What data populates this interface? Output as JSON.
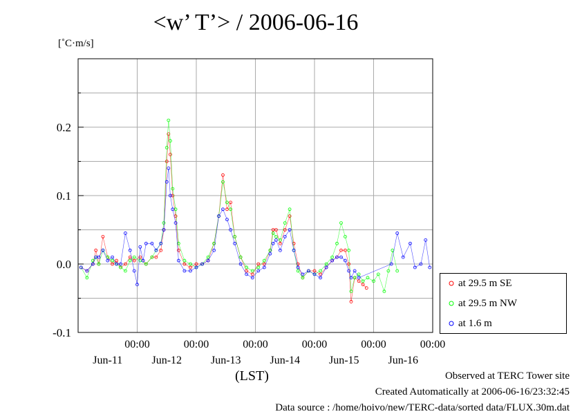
{
  "chart_data": {
    "type": "scatter",
    "title": "<w’ T’> / 2006-06-16",
    "ylabel": "[˚C·m/s]",
    "xlabel": "(LST)",
    "ylim": [
      -0.1,
      0.3
    ],
    "xlim": [
      0,
      6
    ],
    "grid": true,
    "legend_position": "right",
    "y_ticks": [
      {
        "value": 0.2,
        "label": "0.2"
      },
      {
        "value": 0.1,
        "label": "0.1"
      },
      {
        "value": 0.0,
        "label": "0.0"
      },
      {
        "value": -0.1,
        "label": "-0.1"
      }
    ],
    "x_ticks": [
      {
        "value": 1,
        "time": "00:00",
        "date": "Jun-11"
      },
      {
        "value": 2,
        "time": "00:00",
        "date": "Jun-12"
      },
      {
        "value": 3,
        "time": "00:00",
        "date": "Jun-13"
      },
      {
        "value": 4,
        "time": "00:00",
        "date": "Jun-14"
      },
      {
        "value": 5,
        "time": "00:00",
        "date": "Jun-15"
      },
      {
        "value": 6,
        "time": "00:00",
        "date": "Jun-16"
      }
    ],
    "series": [
      {
        "name": "at 29.5 m SE",
        "color": "#ff0000",
        "marker": "circle",
        "points": [
          [
            0.05,
            -0.005
          ],
          [
            0.15,
            -0.01
          ],
          [
            0.25,
            0.0
          ],
          [
            0.3,
            0.02
          ],
          [
            0.35,
            0.0
          ],
          [
            0.42,
            0.04
          ],
          [
            0.5,
            0.01
          ],
          [
            0.58,
            0.0
          ],
          [
            0.65,
            0.005
          ],
          [
            0.72,
            -0.005
          ],
          [
            0.8,
            0.0
          ],
          [
            0.88,
            0.01
          ],
          [
            0.95,
            0.005
          ],
          [
            1.05,
            0.01
          ],
          [
            1.15,
            0.0
          ],
          [
            1.25,
            0.01
          ],
          [
            1.32,
            0.01
          ],
          [
            1.4,
            0.02
          ],
          [
            1.45,
            0.05
          ],
          [
            1.5,
            0.15
          ],
          [
            1.53,
            0.19
          ],
          [
            1.56,
            0.16
          ],
          [
            1.6,
            0.1
          ],
          [
            1.65,
            0.07
          ],
          [
            1.7,
            0.02
          ],
          [
            1.8,
            0.0
          ],
          [
            1.9,
            -0.005
          ],
          [
            2.0,
            0.0
          ],
          [
            2.1,
            0.0
          ],
          [
            2.2,
            0.005
          ],
          [
            2.3,
            0.03
          ],
          [
            2.38,
            0.07
          ],
          [
            2.45,
            0.13
          ],
          [
            2.52,
            0.08
          ],
          [
            2.58,
            0.09
          ],
          [
            2.65,
            0.04
          ],
          [
            2.75,
            0.01
          ],
          [
            2.85,
            -0.01
          ],
          [
            2.95,
            -0.015
          ],
          [
            3.05,
            0.0
          ],
          [
            3.15,
            0.0
          ],
          [
            3.25,
            0.02
          ],
          [
            3.3,
            0.05
          ],
          [
            3.35,
            0.05
          ],
          [
            3.42,
            0.03
          ],
          [
            3.5,
            0.05
          ],
          [
            3.58,
            0.07
          ],
          [
            3.65,
            0.03
          ],
          [
            3.72,
            0.0
          ],
          [
            3.8,
            -0.02
          ],
          [
            3.9,
            -0.01
          ],
          [
            4.0,
            -0.01
          ],
          [
            4.1,
            -0.015
          ],
          [
            4.2,
            -0.005
          ],
          [
            4.3,
            0.005
          ],
          [
            4.38,
            0.01
          ],
          [
            4.45,
            0.02
          ],
          [
            4.52,
            0.02
          ],
          [
            4.58,
            0.0
          ],
          [
            4.62,
            -0.055
          ],
          [
            4.68,
            -0.02
          ],
          [
            4.75,
            -0.025
          ],
          [
            4.82,
            -0.03
          ],
          [
            4.88,
            -0.035
          ]
        ]
      },
      {
        "name": "at 29.5 m NW",
        "color": "#00ff00",
        "marker": "circle",
        "points": [
          [
            0.05,
            -0.005
          ],
          [
            0.15,
            -0.02
          ],
          [
            0.25,
            0.005
          ],
          [
            0.3,
            0.01
          ],
          [
            0.35,
            0.0
          ],
          [
            0.42,
            0.02
          ],
          [
            0.5,
            0.01
          ],
          [
            0.58,
            0.005
          ],
          [
            0.65,
            0.0
          ],
          [
            0.72,
            -0.005
          ],
          [
            0.8,
            -0.01
          ],
          [
            0.88,
            0.005
          ],
          [
            0.95,
            0.01
          ],
          [
            1.05,
            0.005
          ],
          [
            1.15,
            0.0
          ],
          [
            1.25,
            0.01
          ],
          [
            1.32,
            0.02
          ],
          [
            1.4,
            0.03
          ],
          [
            1.45,
            0.06
          ],
          [
            1.5,
            0.17
          ],
          [
            1.53,
            0.21
          ],
          [
            1.56,
            0.18
          ],
          [
            1.6,
            0.11
          ],
          [
            1.65,
            0.08
          ],
          [
            1.7,
            0.03
          ],
          [
            1.8,
            0.005
          ],
          [
            1.9,
            0.0
          ],
          [
            2.0,
            -0.005
          ],
          [
            2.1,
            0.0
          ],
          [
            2.2,
            0.01
          ],
          [
            2.3,
            0.03
          ],
          [
            2.38,
            0.07
          ],
          [
            2.45,
            0.12
          ],
          [
            2.52,
            0.09
          ],
          [
            2.58,
            0.08
          ],
          [
            2.65,
            0.04
          ],
          [
            2.75,
            0.01
          ],
          [
            2.85,
            -0.005
          ],
          [
            2.95,
            -0.01
          ],
          [
            3.05,
            -0.005
          ],
          [
            3.15,
            0.005
          ],
          [
            3.25,
            0.02
          ],
          [
            3.3,
            0.045
          ],
          [
            3.35,
            0.04
          ],
          [
            3.42,
            0.035
          ],
          [
            3.5,
            0.06
          ],
          [
            3.58,
            0.08
          ],
          [
            3.65,
            0.02
          ],
          [
            3.72,
            -0.01
          ],
          [
            3.8,
            -0.02
          ],
          [
            3.9,
            -0.01
          ],
          [
            4.0,
            -0.015
          ],
          [
            4.1,
            -0.01
          ],
          [
            4.2,
            0.0
          ],
          [
            4.3,
            0.01
          ],
          [
            4.38,
            0.03
          ],
          [
            4.45,
            0.06
          ],
          [
            4.52,
            0.04
          ],
          [
            4.58,
            0.02
          ],
          [
            4.62,
            -0.04
          ],
          [
            4.68,
            -0.02
          ],
          [
            4.75,
            -0.015
          ],
          [
            4.82,
            -0.025
          ],
          [
            4.9,
            -0.02
          ],
          [
            5.0,
            -0.025
          ],
          [
            5.08,
            -0.015
          ],
          [
            5.18,
            -0.04
          ],
          [
            5.25,
            -0.01
          ],
          [
            5.32,
            0.02
          ],
          [
            5.4,
            -0.01
          ]
        ]
      },
      {
        "name": "at 1.6 m",
        "color": "#0000ff",
        "marker": "circle",
        "points": [
          [
            0.05,
            -0.005
          ],
          [
            0.15,
            -0.01
          ],
          [
            0.25,
            0.0
          ],
          [
            0.3,
            0.01
          ],
          [
            0.35,
            0.01
          ],
          [
            0.42,
            0.02
          ],
          [
            0.5,
            0.005
          ],
          [
            0.58,
            0.01
          ],
          [
            0.65,
            0.0
          ],
          [
            0.72,
            0.0
          ],
          [
            0.8,
            0.045
          ],
          [
            0.88,
            0.02
          ],
          [
            0.95,
            -0.01
          ],
          [
            1.0,
            -0.03
          ],
          [
            1.05,
            0.025
          ],
          [
            1.1,
            0.005
          ],
          [
            1.15,
            0.03
          ],
          [
            1.25,
            0.03
          ],
          [
            1.32,
            0.02
          ],
          [
            1.4,
            0.03
          ],
          [
            1.45,
            0.05
          ],
          [
            1.5,
            0.12
          ],
          [
            1.53,
            0.14
          ],
          [
            1.56,
            0.1
          ],
          [
            1.6,
            0.08
          ],
          [
            1.65,
            0.06
          ],
          [
            1.7,
            0.005
          ],
          [
            1.8,
            -0.01
          ],
          [
            1.9,
            -0.01
          ],
          [
            2.0,
            -0.005
          ],
          [
            2.1,
            0.0
          ],
          [
            2.2,
            0.005
          ],
          [
            2.3,
            0.02
          ],
          [
            2.38,
            0.07
          ],
          [
            2.45,
            0.08
          ],
          [
            2.52,
            0.065
          ],
          [
            2.58,
            0.05
          ],
          [
            2.65,
            0.03
          ],
          [
            2.75,
            0.0
          ],
          [
            2.85,
            -0.015
          ],
          [
            2.95,
            -0.02
          ],
          [
            3.05,
            -0.01
          ],
          [
            3.15,
            -0.005
          ],
          [
            3.25,
            0.015
          ],
          [
            3.3,
            0.03
          ],
          [
            3.35,
            0.035
          ],
          [
            3.42,
            0.02
          ],
          [
            3.5,
            0.04
          ],
          [
            3.58,
            0.05
          ],
          [
            3.65,
            0.02
          ],
          [
            3.72,
            -0.005
          ],
          [
            3.8,
            -0.015
          ],
          [
            3.9,
            -0.01
          ],
          [
            4.0,
            -0.015
          ],
          [
            4.1,
            -0.02
          ],
          [
            4.2,
            -0.005
          ],
          [
            4.3,
            0.005
          ],
          [
            4.38,
            0.01
          ],
          [
            4.45,
            0.01
          ],
          [
            4.52,
            0.005
          ],
          [
            4.58,
            -0.01
          ],
          [
            4.62,
            -0.02
          ],
          [
            4.68,
            -0.01
          ],
          [
            4.75,
            -0.02
          ],
          [
            5.3,
            0.0
          ],
          [
            5.4,
            0.045
          ],
          [
            5.5,
            0.01
          ],
          [
            5.62,
            0.03
          ],
          [
            5.7,
            -0.005
          ],
          [
            5.8,
            0.0
          ],
          [
            5.88,
            0.035
          ],
          [
            5.95,
            -0.005
          ]
        ]
      }
    ]
  },
  "footer": {
    "line1": "Observed at TERC Tower site",
    "line2": "Created Automatically at 2006-06-16/23:32:45",
    "line3": "Data source : /home/hoivo/new/TERC-data/sorted  data/FLUX.30m.dat"
  }
}
